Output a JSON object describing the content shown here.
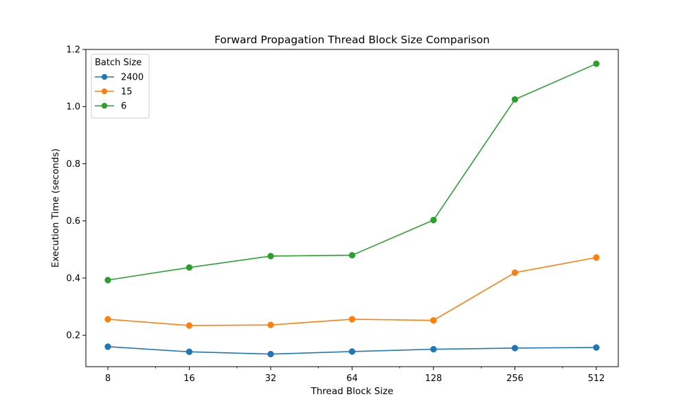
{
  "chart_data": {
    "type": "line",
    "title": "Forward Propagation Thread Block Size Comparison",
    "xlabel": "Thread Block Size",
    "ylabel": "Execution Time (seconds)",
    "x_scale": "log2",
    "x": [
      8,
      16,
      32,
      64,
      128,
      256,
      512
    ],
    "x_tick_labels": [
      "8",
      "16",
      "32",
      "64",
      "128",
      "256",
      "512"
    ],
    "ylim": [
      0.09,
      1.2
    ],
    "y_ticks": [
      0.2,
      0.4,
      0.6,
      0.8,
      1.0,
      1.2
    ],
    "y_tick_labels": [
      "0.2",
      "0.4",
      "0.6",
      "0.8",
      "1.0",
      "1.2"
    ],
    "grid": false,
    "legend": {
      "title": "Batch Size",
      "placement": "top-left"
    },
    "series": [
      {
        "name": "2400",
        "color": "#1f77b4",
        "values": [
          0.16,
          0.142,
          0.134,
          0.143,
          0.151,
          0.155,
          0.157
        ]
      },
      {
        "name": "15",
        "color": "#ff7f0e",
        "values": [
          0.256,
          0.234,
          0.236,
          0.256,
          0.252,
          0.419,
          0.472
        ]
      },
      {
        "name": "6",
        "color": "#2ca02c",
        "values": [
          0.393,
          0.437,
          0.477,
          0.48,
          0.603,
          1.025,
          1.15
        ]
      }
    ]
  }
}
